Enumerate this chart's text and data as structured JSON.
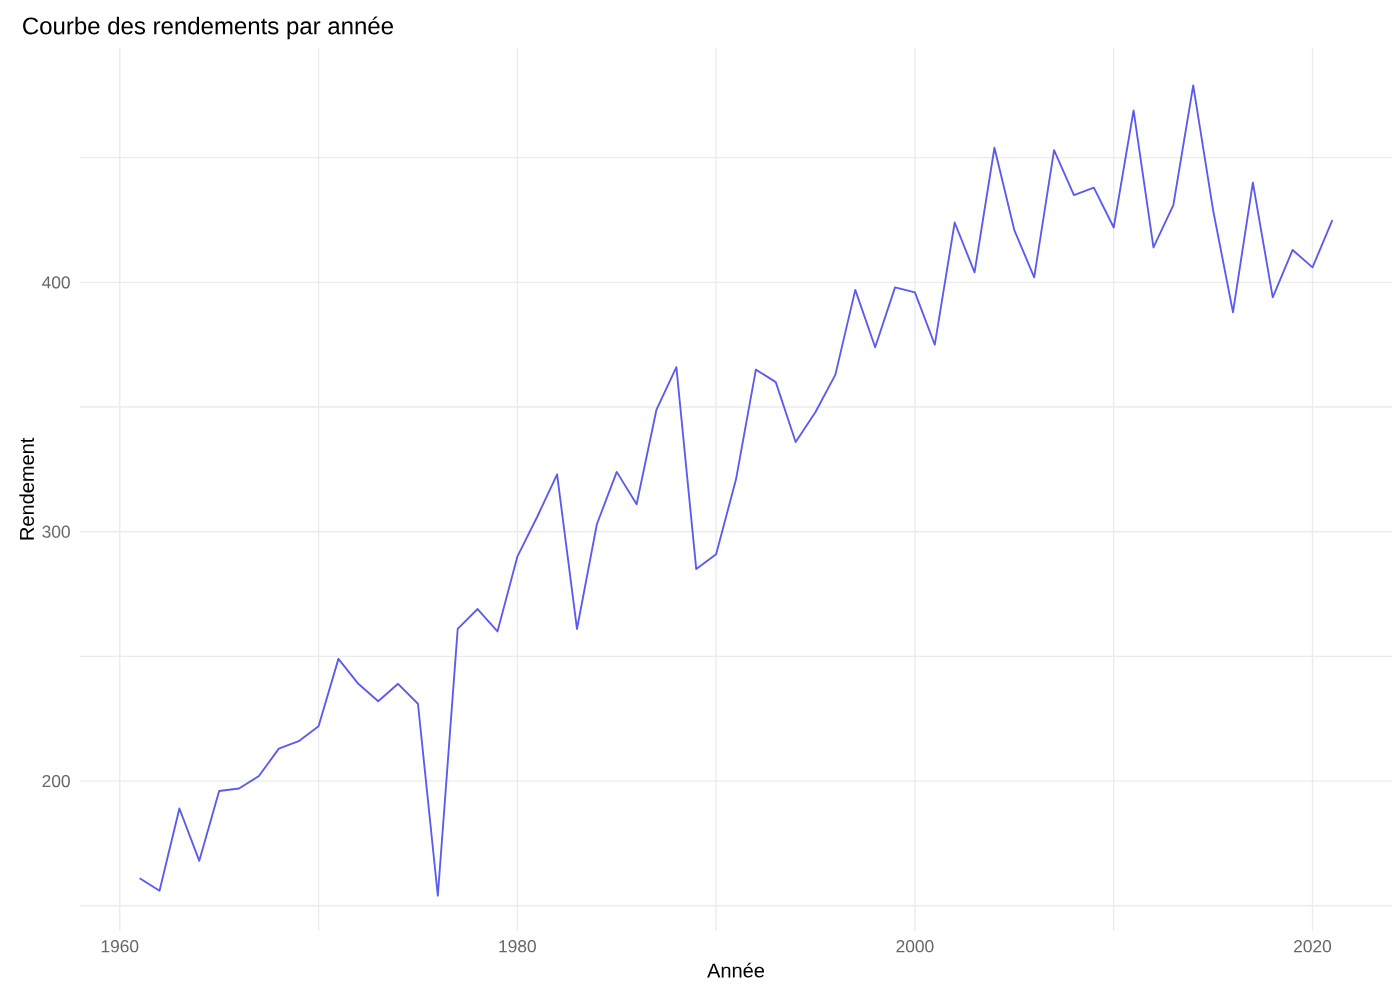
{
  "chart_data": {
    "type": "line",
    "title": "Courbe des rendements par année",
    "xlabel": "Année",
    "ylabel": "Rendement",
    "x": [
      1961,
      1962,
      1963,
      1964,
      1965,
      1966,
      1967,
      1968,
      1969,
      1970,
      1971,
      1972,
      1973,
      1974,
      1975,
      1976,
      1977,
      1978,
      1979,
      1980,
      1981,
      1982,
      1983,
      1984,
      1985,
      1986,
      1987,
      1988,
      1989,
      1990,
      1991,
      1992,
      1993,
      1994,
      1995,
      1996,
      1997,
      1998,
      1999,
      2000,
      2001,
      2002,
      2003,
      2004,
      2005,
      2006,
      2007,
      2008,
      2009,
      2010,
      2011,
      2012,
      2013,
      2014,
      2015,
      2016,
      2017,
      2018,
      2019,
      2020,
      2021
    ],
    "values": [
      161,
      156,
      189,
      168,
      196,
      197,
      202,
      213,
      216,
      222,
      249,
      239,
      232,
      239,
      231,
      154,
      261,
      269,
      260,
      290,
      306,
      323,
      261,
      303,
      324,
      311,
      349,
      366,
      285,
      291,
      321,
      365,
      360,
      336,
      348,
      363,
      397,
      374,
      398,
      396,
      375,
      424,
      404,
      454,
      421,
      402,
      453,
      435,
      438,
      422,
      469,
      414,
      431,
      479,
      429,
      388,
      440,
      394,
      413,
      406,
      425
    ],
    "color": "#5b5bf0",
    "xlim": [
      1958,
      2024
    ],
    "ylim": [
      140,
      494
    ],
    "xticks": [
      1960,
      {
        "value": 1970,
        "label": null
      },
      1980,
      {
        "value": 1990,
        "label": null
      },
      2000,
      {
        "value": 2010,
        "label": null
      },
      2020
    ],
    "yticks": [
      {
        "value": 150,
        "label": null
      },
      200,
      {
        "value": 250,
        "label": null
      },
      300,
      {
        "value": 350,
        "label": null
      },
      400,
      {
        "value": 450,
        "label": null
      }
    ],
    "grid": true,
    "marker": "none",
    "line_style": "solid"
  }
}
